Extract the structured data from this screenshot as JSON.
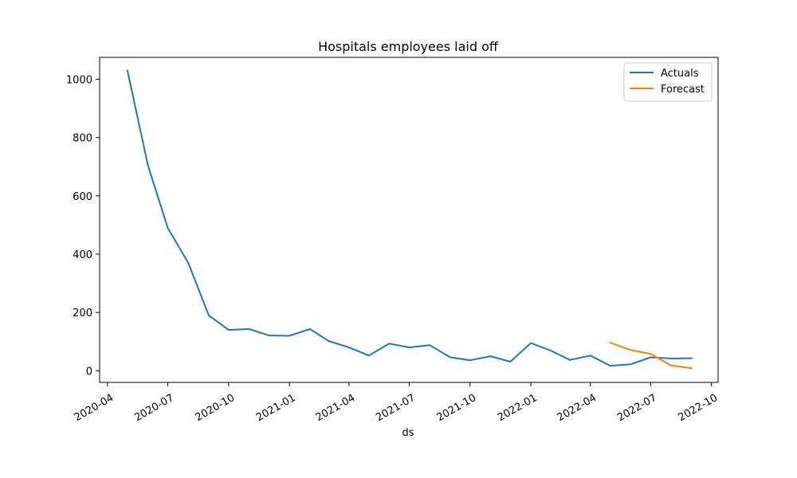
{
  "chart_data": {
    "type": "line",
    "title": "Hospitals employees laid off",
    "xlabel": "ds",
    "ylabel": "",
    "xlim": [
      "2020-03-20",
      "2022-10-11"
    ],
    "ylim": [
      -40,
      1075
    ],
    "x_ticks": [
      {
        "date": "2020-04-01",
        "label": "2020-04"
      },
      {
        "date": "2020-07-01",
        "label": "2020-07"
      },
      {
        "date": "2020-10-01",
        "label": "2020-10"
      },
      {
        "date": "2021-01-01",
        "label": "2021-01"
      },
      {
        "date": "2021-04-01",
        "label": "2021-04"
      },
      {
        "date": "2021-07-01",
        "label": "2021-07"
      },
      {
        "date": "2021-10-01",
        "label": "2021-10"
      },
      {
        "date": "2022-01-01",
        "label": "2022-01"
      },
      {
        "date": "2022-04-01",
        "label": "2022-04"
      },
      {
        "date": "2022-07-01",
        "label": "2022-07"
      },
      {
        "date": "2022-10-01",
        "label": "2022-10"
      }
    ],
    "y_ticks": [
      {
        "value": 0,
        "label": "0"
      },
      {
        "value": 200,
        "label": "200"
      },
      {
        "value": 400,
        "label": "400"
      },
      {
        "value": 600,
        "label": "600"
      },
      {
        "value": 800,
        "label": "800"
      },
      {
        "value": 1000,
        "label": "1000"
      }
    ],
    "legend_position": "top-right",
    "grid": false,
    "series": [
      {
        "name": "Actuals",
        "color": "#1f77b4",
        "x": [
          "2020-05-01",
          "2020-06-01",
          "2020-07-01",
          "2020-08-01",
          "2020-09-01",
          "2020-10-01",
          "2020-11-01",
          "2020-12-01",
          "2021-01-01",
          "2021-02-01",
          "2021-03-01",
          "2021-04-01",
          "2021-05-01",
          "2021-06-01",
          "2021-07-01",
          "2021-08-01",
          "2021-09-01",
          "2021-10-01",
          "2021-11-01",
          "2021-12-01",
          "2022-01-01",
          "2022-02-01",
          "2022-03-01",
          "2022-04-01",
          "2022-05-01",
          "2022-06-01",
          "2022-07-01",
          "2022-08-01",
          "2022-09-01"
        ],
        "y": [
          1030,
          705,
          490,
          370,
          190,
          140,
          143,
          121,
          120,
          143,
          102,
          80,
          52,
          93,
          80,
          88,
          46,
          36,
          50,
          31,
          95,
          68,
          37,
          52,
          17,
          22,
          46,
          42,
          43
        ]
      },
      {
        "name": "Forecast",
        "color": "#ff7f0e",
        "x": [
          "2022-05-01",
          "2022-06-01",
          "2022-07-01",
          "2022-08-01",
          "2022-09-01"
        ],
        "y": [
          96,
          71,
          58,
          18,
          9
        ]
      }
    ]
  }
}
